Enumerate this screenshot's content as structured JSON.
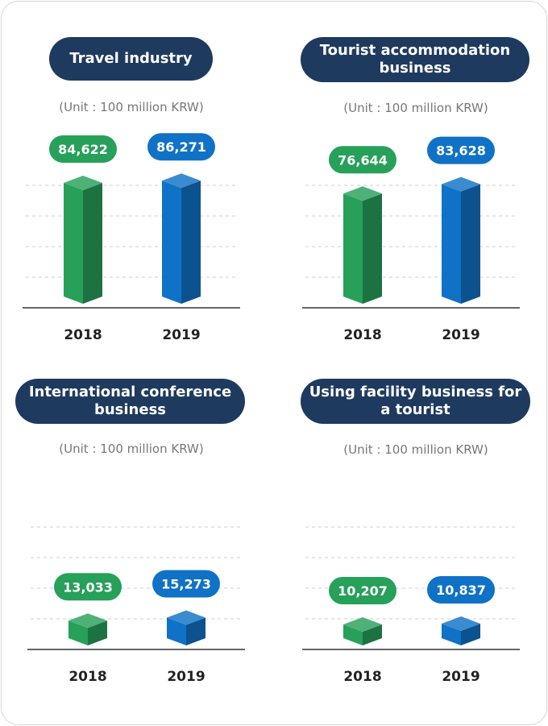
{
  "colors": {
    "pill": "#1e3a5f",
    "green": "#27a05a",
    "blue": "#0f72c6"
  },
  "chart_data": [
    {
      "type": "bar",
      "title": "Travel industry",
      "subtitle": "(Unit : 100 million KRW)",
      "categories": [
        "2018",
        "2019"
      ],
      "values": [
        84622,
        86271
      ],
      "value_labels": [
        "84,622",
        "86,271"
      ]
    },
    {
      "type": "bar",
      "title": "Tourist accommodation business",
      "subtitle": "(Unit : 100 million KRW)",
      "categories": [
        "2018",
        "2019"
      ],
      "values": [
        76644,
        83628
      ],
      "value_labels": [
        "76,644",
        "83,628"
      ]
    },
    {
      "type": "bar",
      "title": "International conference business",
      "subtitle": "(Unit : 100 million KRW)",
      "categories": [
        "2018",
        "2019"
      ],
      "values": [
        13033,
        15273
      ],
      "value_labels": [
        "13,033",
        "15,273"
      ]
    },
    {
      "type": "bar",
      "title": "Using facility business for a tourist",
      "subtitle": "(Unit : 100 million KRW)",
      "categories": [
        "2018",
        "2019"
      ],
      "values": [
        10207,
        10837
      ],
      "value_labels": [
        "10,207",
        "10,837"
      ]
    }
  ]
}
